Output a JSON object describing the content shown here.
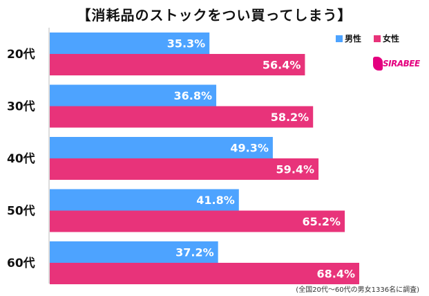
{
  "title": "【消耗品のストックをつい買ってしまう】",
  "legend": {
    "male": "男性",
    "female": "女性"
  },
  "colors": {
    "male": "#4da3ff",
    "female": "#e8337a"
  },
  "logo_text": "SIRABEE",
  "footnote": "(全国20代～60代の男女1336名に調査)",
  "chart_data": {
    "type": "bar",
    "orientation": "horizontal",
    "title": "【消耗品のストックをつい買ってしまう】",
    "categories": [
      "20代",
      "30代",
      "40代",
      "50代",
      "60代"
    ],
    "series": [
      {
        "name": "男性",
        "values": [
          35.3,
          36.8,
          49.3,
          41.8,
          37.2
        ],
        "labels": [
          "35.3%",
          "36.8%",
          "49.3%",
          "41.8%",
          "37.2%"
        ]
      },
      {
        "name": "女性",
        "values": [
          56.4,
          58.2,
          59.4,
          65.2,
          68.4
        ],
        "labels": [
          "56.4%",
          "58.2%",
          "59.4%",
          "65.2%",
          "68.4%"
        ]
      }
    ],
    "xlim": [
      0,
      100
    ],
    "grid": false,
    "legend_position": "top-right"
  }
}
